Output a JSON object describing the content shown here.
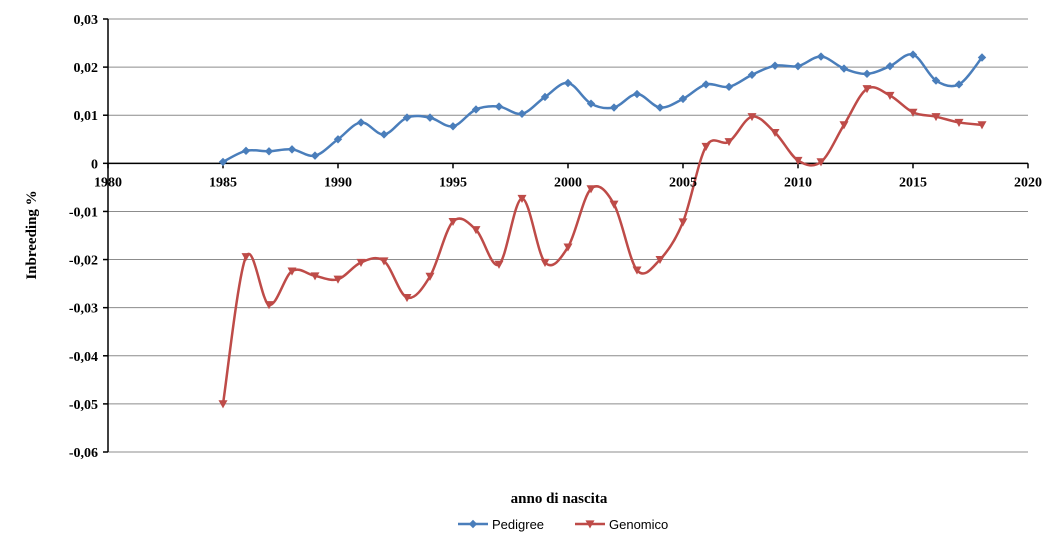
{
  "chart_data": {
    "type": "line",
    "title": "",
    "xlabel": "anno di nascita",
    "ylabel": "Inbreeding %",
    "xlim": [
      1980,
      2020
    ],
    "ylim": [
      -0.06,
      0.03
    ],
    "x_ticks": [
      1980,
      1985,
      1990,
      1995,
      2000,
      2005,
      2010,
      2015,
      2020
    ],
    "x_tick_labels": [
      "1980",
      "1985",
      "1990",
      "1995",
      "2000",
      "2005",
      "2010",
      "2015",
      "2020"
    ],
    "y_ticks": [
      0.03,
      0.02,
      0.01,
      0,
      -0.01,
      -0.02,
      -0.03,
      -0.04,
      -0.05,
      -0.06
    ],
    "y_tick_labels": [
      "0,03",
      "0,02",
      "0,01",
      "0",
      "-0,01",
      "-0,02",
      "-0,03",
      "-0,04",
      "-0,05",
      "-0,06"
    ],
    "grid": true,
    "legend_position": "bottom",
    "series": [
      {
        "name": "Pedigree",
        "color": "#4a7ebb",
        "marker": "diamond",
        "x": [
          1985,
          1986,
          1987,
          1988,
          1989,
          1990,
          1991,
          1992,
          1993,
          1994,
          1995,
          1996,
          1997,
          1998,
          1999,
          2000,
          2001,
          2002,
          2003,
          2004,
          2005,
          2006,
          2007,
          2008,
          2009,
          2010,
          2011,
          2012,
          2013,
          2014,
          2015,
          2016,
          2017,
          2018
        ],
        "y": [
          0.0003,
          0.0026,
          0.0025,
          0.0029,
          0.0016,
          0.005,
          0.0085,
          0.006,
          0.0095,
          0.0095,
          0.0077,
          0.0112,
          0.0118,
          0.0103,
          0.0138,
          0.0167,
          0.0124,
          0.0116,
          0.0144,
          0.0116,
          0.0134,
          0.0164,
          0.0159,
          0.0184,
          0.0203,
          0.0202,
          0.0222,
          0.0197,
          0.0186,
          0.0202,
          0.0226,
          0.0172,
          0.0164,
          0.022
        ]
      },
      {
        "name": "Genomico",
        "color": "#be4b48",
        "marker": "triangle-down",
        "x": [
          1985,
          1986,
          1987,
          1988,
          1989,
          1990,
          1991,
          1992,
          1993,
          1994,
          1995,
          1996,
          1997,
          1998,
          1999,
          2000,
          2001,
          2002,
          2003,
          2004,
          2005,
          2006,
          2007,
          2008,
          2009,
          2010,
          2011,
          2012,
          2013,
          2014,
          2015,
          2016,
          2017,
          2018
        ],
        "y": [
          -0.05,
          -0.0194,
          -0.0294,
          -0.0224,
          -0.0234,
          -0.0241,
          -0.0206,
          -0.0203,
          -0.0279,
          -0.0235,
          -0.0121,
          -0.0138,
          -0.021,
          -0.0073,
          -0.0206,
          -0.0174,
          -0.0053,
          -0.0085,
          -0.0222,
          -0.02,
          -0.0122,
          0.0035,
          0.0045,
          0.0097,
          0.0064,
          0.0006,
          0.0003,
          0.008,
          0.0155,
          0.0141,
          0.0106,
          0.0097,
          0.0085,
          0.008
        ]
      }
    ]
  }
}
